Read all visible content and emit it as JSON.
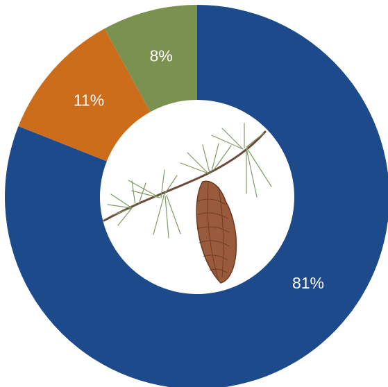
{
  "chart_data": {
    "type": "donut",
    "values": [
      81,
      11,
      8
    ],
    "value_labels": [
      "81%",
      "11%",
      "8%"
    ],
    "colors": [
      "#1d4a8b",
      "#cc6d1c",
      "#7b9150"
    ]
  }
}
